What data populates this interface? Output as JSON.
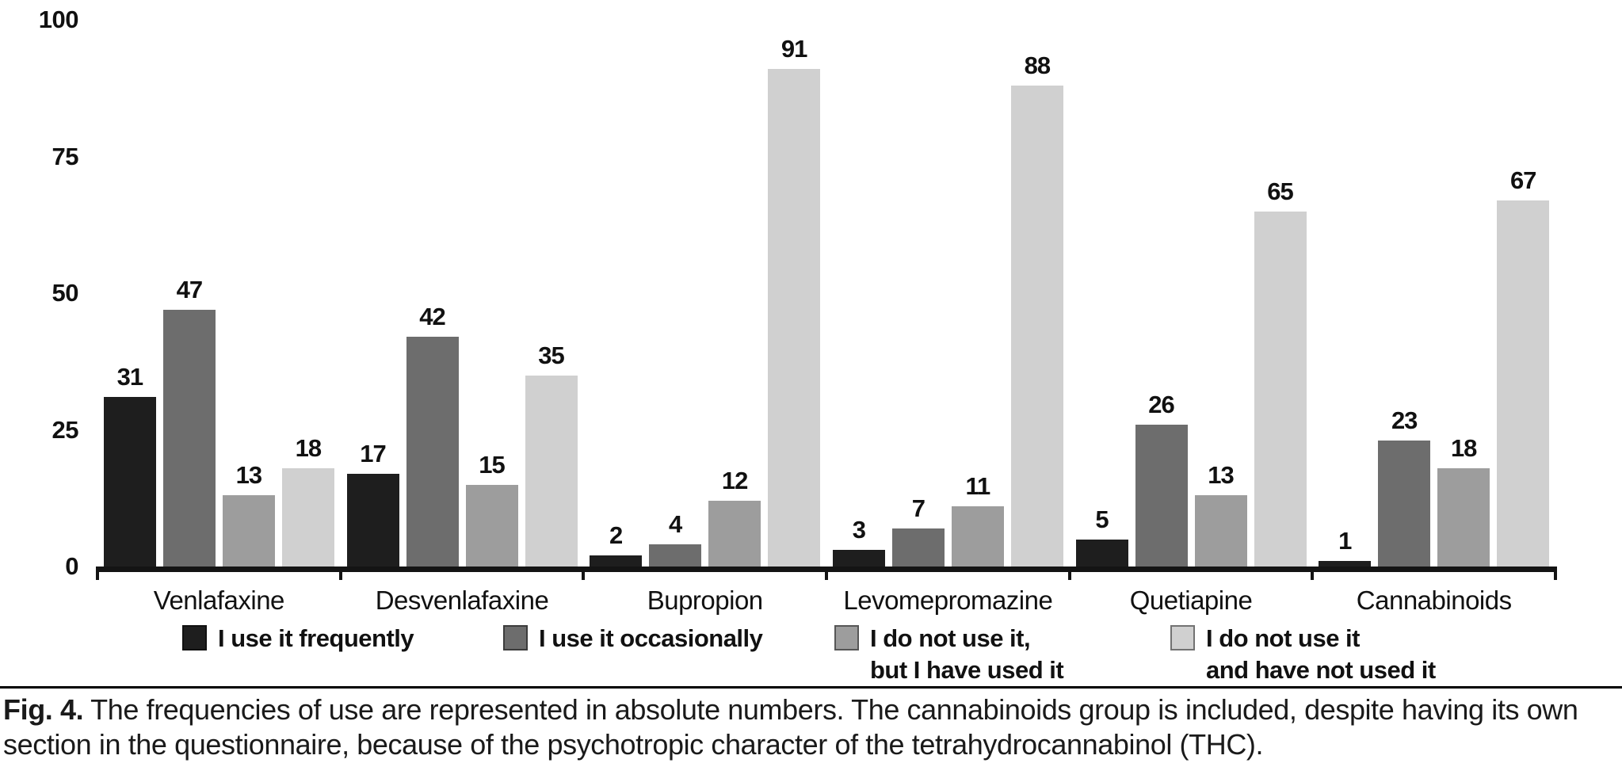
{
  "chart_data": {
    "type": "bar",
    "title": "",
    "xlabel": "",
    "ylabel": "",
    "ylim": [
      0,
      100
    ],
    "yticks": [
      0,
      25,
      50,
      75,
      100
    ],
    "grid": false,
    "legend_position": "bottom",
    "value_labels": true,
    "categories": [
      "Venlafaxine",
      "Desvenlafaxine",
      "Bupropion",
      "Levomepromazine",
      "Quetiapine",
      "Cannabinoids"
    ],
    "series": [
      {
        "name": "I use it frequently",
        "color": "#1e1e1e",
        "values": [
          31,
          17,
          2,
          3,
          5,
          1
        ]
      },
      {
        "name": "I use it occasionally",
        "color": "#6d6d6d",
        "values": [
          47,
          42,
          4,
          7,
          26,
          23
        ]
      },
      {
        "name": "I do not use it,\nbut I have used it",
        "color": "#9d9d9d",
        "values": [
          13,
          15,
          12,
          11,
          13,
          18
        ]
      },
      {
        "name": "I do not use it\nand have not used it",
        "color": "#d0d0d0",
        "values": [
          18,
          35,
          91,
          88,
          65,
          67
        ]
      }
    ]
  },
  "legend": {
    "entry_x_positions": [
      230,
      635,
      1053,
      1477
    ]
  },
  "caption": {
    "tag": "Fig. 4.",
    "text": "The frequencies of use are represented in absolute numbers. The cannabinoids group is included, despite having its own section in the questionnaire, because of the psychotropic character of the tetrahydrocannabinol (THC)."
  },
  "colors": {
    "axis": "#141414",
    "text": "#111111",
    "background": "#ffffff"
  }
}
